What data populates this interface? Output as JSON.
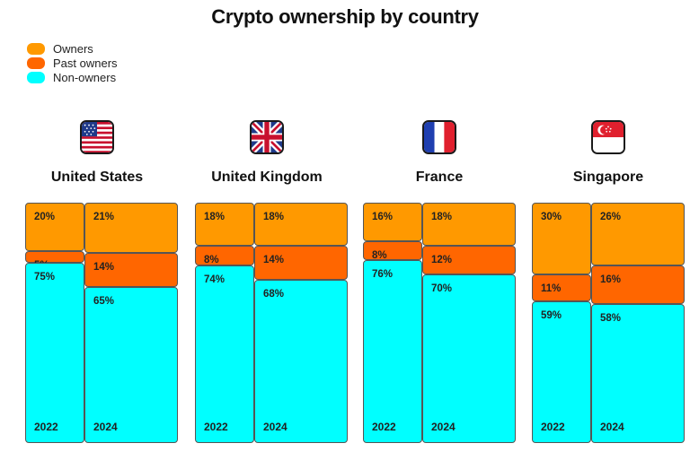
{
  "title": "Crypto ownership by country",
  "colors": {
    "Owners": "#FF9900",
    "Past owners": "#FF6600",
    "Non-owners": "#00FFFF"
  },
  "legend": [
    {
      "label": "Owners",
      "color": "#FF9900"
    },
    {
      "label": "Past owners",
      "color": "#FF6600"
    },
    {
      "label": "Non-owners",
      "color": "#00FFFF"
    }
  ],
  "countries": [
    {
      "name": "United States",
      "flag_icon": "us-flag-icon"
    },
    {
      "name": "United Kingdom",
      "flag_icon": "uk-flag-icon"
    },
    {
      "name": "France",
      "flag_icon": "france-flag-icon"
    },
    {
      "name": "Singapore",
      "flag_icon": "singapore-flag-icon"
    }
  ],
  "chart_data": {
    "type": "bar",
    "title": "Crypto ownership by country",
    "categories": [
      "Owners",
      "Past owners",
      "Non-owners"
    ],
    "unit": "%",
    "groups": [
      {
        "country": "United States",
        "years": [
          {
            "year": "2022",
            "values": [
              20,
              5,
              75
            ]
          },
          {
            "year": "2024",
            "values": [
              21,
              14,
              65
            ]
          }
        ]
      },
      {
        "country": "United Kingdom",
        "years": [
          {
            "year": "2022",
            "values": [
              18,
              8,
              74
            ]
          },
          {
            "year": "2024",
            "values": [
              18,
              14,
              68
            ]
          }
        ]
      },
      {
        "country": "France",
        "years": [
          {
            "year": "2022",
            "values": [
              16,
              8,
              76
            ]
          },
          {
            "year": "2024",
            "values": [
              18,
              12,
              70
            ]
          }
        ]
      },
      {
        "country": "Singapore",
        "years": [
          {
            "year": "2022",
            "values": [
              30,
              11,
              59
            ]
          },
          {
            "year": "2024",
            "values": [
              26,
              16,
              58
            ]
          }
        ]
      }
    ]
  }
}
